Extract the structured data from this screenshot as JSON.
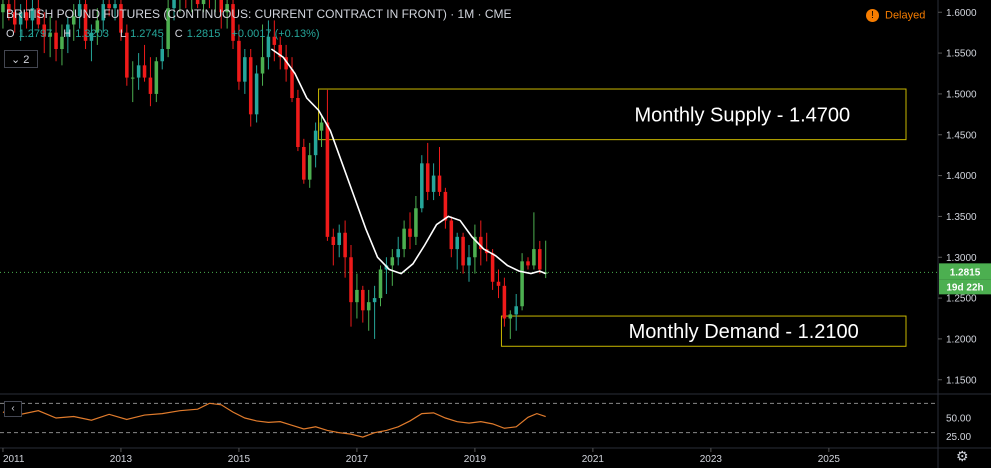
{
  "header": {
    "title": "BRITISH POUND FUTURES (CONTINUOUS: CURRENT CONTRACT IN FRONT) · 1M · CME",
    "ohlc": {
      "o_label": "O",
      "o_value": "1.2797",
      "h_label": "H",
      "h_value": "1.3203",
      "l_label": "L",
      "l_value": "1.2745",
      "c_label": "C",
      "c_value": "1.2815",
      "change": "+0.0017 (+0.13%)"
    },
    "delayed_label": "Delayed",
    "delayed_icon": "clock-icon",
    "collapse_count": "2"
  },
  "colors": {
    "background": "#000000",
    "up": "#26a69a",
    "up_alt": "#4caf50",
    "down": "#ef1a1a",
    "ma": "#ffffff",
    "zone": "#c9b800",
    "price_label": "#4caf50",
    "rsi": "#e07b2c"
  },
  "chart_data": {
    "type": "candlestick",
    "title": "BRITISH POUND FUTURES (CONTINUOUS: CURRENT CONTRACT IN FRONT) · 1M · CME",
    "timeframe": "1M",
    "y_ticks": [
      "1.6000",
      "1.5500",
      "1.5000",
      "1.4500",
      "1.4000",
      "1.3500",
      "1.3000",
      "1.2500",
      "1.2000",
      "1.1500"
    ],
    "ylim": [
      1.135,
      1.615
    ],
    "x_ticks": [
      "2011",
      "2013",
      "2015",
      "2017",
      "2019",
      "2021",
      "2023",
      "2025"
    ],
    "xlim": [
      2010.95,
      2026.85
    ],
    "last_price_label": "1.2815",
    "countdown_label": "19d 22h",
    "zones": [
      {
        "label": "Monthly Supply - 1.4700",
        "top": 1.506,
        "bottom": 1.444,
        "start": 2016.35,
        "end": 2026.85
      },
      {
        "label": "Monthly Demand - 1.2100",
        "top": 1.228,
        "bottom": 1.191,
        "start": 2019.45,
        "end": 2026.85
      }
    ],
    "candles": [
      {
        "t": 2011.0,
        "o": 1.6,
        "h": 1.625,
        "l": 1.58,
        "c": 1.61
      },
      {
        "t": 2011.1,
        "o": 1.61,
        "h": 1.63,
        "l": 1.59,
        "c": 1.6
      },
      {
        "t": 2011.2,
        "o": 1.6,
        "h": 1.625,
        "l": 1.575,
        "c": 1.585
      },
      {
        "t": 2011.3,
        "o": 1.585,
        "h": 1.61,
        "l": 1.565,
        "c": 1.6
      },
      {
        "t": 2011.4,
        "o": 1.6,
        "h": 1.62,
        "l": 1.58,
        "c": 1.59
      },
      {
        "t": 2011.5,
        "o": 1.59,
        "h": 1.615,
        "l": 1.57,
        "c": 1.605
      },
      {
        "t": 2011.6,
        "o": 1.605,
        "h": 1.62,
        "l": 1.58,
        "c": 1.585
      },
      {
        "t": 2011.7,
        "o": 1.585,
        "h": 1.6,
        "l": 1.55,
        "c": 1.57
      },
      {
        "t": 2011.8,
        "o": 1.57,
        "h": 1.595,
        "l": 1.545,
        "c": 1.575
      },
      {
        "t": 2011.9,
        "o": 1.575,
        "h": 1.59,
        "l": 1.54,
        "c": 1.555
      },
      {
        "t": 2012.0,
        "o": 1.555,
        "h": 1.585,
        "l": 1.535,
        "c": 1.57
      },
      {
        "t": 2012.1,
        "o": 1.57,
        "h": 1.595,
        "l": 1.55,
        "c": 1.585
      },
      {
        "t": 2012.2,
        "o": 1.585,
        "h": 1.61,
        "l": 1.565,
        "c": 1.595
      },
      {
        "t": 2012.3,
        "o": 1.595,
        "h": 1.62,
        "l": 1.58,
        "c": 1.61
      },
      {
        "t": 2012.4,
        "o": 1.61,
        "h": 1.62,
        "l": 1.555,
        "c": 1.565
      },
      {
        "t": 2012.5,
        "o": 1.565,
        "h": 1.585,
        "l": 1.54,
        "c": 1.575
      },
      {
        "t": 2012.6,
        "o": 1.575,
        "h": 1.605,
        "l": 1.56,
        "c": 1.59
      },
      {
        "t": 2012.7,
        "o": 1.59,
        "h": 1.62,
        "l": 1.575,
        "c": 1.61
      },
      {
        "t": 2012.8,
        "o": 1.61,
        "h": 1.625,
        "l": 1.595,
        "c": 1.605
      },
      {
        "t": 2012.9,
        "o": 1.605,
        "h": 1.625,
        "l": 1.59,
        "c": 1.61
      },
      {
        "t": 2013.0,
        "o": 1.61,
        "h": 1.625,
        "l": 1.565,
        "c": 1.575
      },
      {
        "t": 2013.1,
        "o": 1.575,
        "h": 1.585,
        "l": 1.51,
        "c": 1.52
      },
      {
        "t": 2013.2,
        "o": 1.52,
        "h": 1.54,
        "l": 1.49,
        "c": 1.52
      },
      {
        "t": 2013.3,
        "o": 1.52,
        "h": 1.55,
        "l": 1.505,
        "c": 1.535
      },
      {
        "t": 2013.4,
        "o": 1.535,
        "h": 1.56,
        "l": 1.515,
        "c": 1.52
      },
      {
        "t": 2013.5,
        "o": 1.52,
        "h": 1.545,
        "l": 1.485,
        "c": 1.5
      },
      {
        "t": 2013.6,
        "o": 1.5,
        "h": 1.545,
        "l": 1.49,
        "c": 1.54
      },
      {
        "t": 2013.7,
        "o": 1.54,
        "h": 1.57,
        "l": 1.53,
        "c": 1.555
      },
      {
        "t": 2013.8,
        "o": 1.555,
        "h": 1.625,
        "l": 1.545,
        "c": 1.605
      },
      {
        "t": 2013.9,
        "o": 1.605,
        "h": 1.625,
        "l": 1.59,
        "c": 1.615
      },
      {
        "t": 2014.0,
        "o": 1.615,
        "h": 1.625,
        "l": 1.6,
        "c": 1.62
      },
      {
        "t": 2014.1,
        "o": 1.62,
        "h": 1.625,
        "l": 1.605,
        "c": 1.615
      },
      {
        "t": 2014.2,
        "o": 1.615,
        "h": 1.625,
        "l": 1.6,
        "c": 1.62
      },
      {
        "t": 2014.3,
        "o": 1.62,
        "h": 1.625,
        "l": 1.605,
        "c": 1.61
      },
      {
        "t": 2014.4,
        "o": 1.61,
        "h": 1.625,
        "l": 1.6,
        "c": 1.62
      },
      {
        "t": 2014.5,
        "o": 1.62,
        "h": 1.625,
        "l": 1.605,
        "c": 1.615
      },
      {
        "t": 2014.6,
        "o": 1.615,
        "h": 1.625,
        "l": 1.6,
        "c": 1.62
      },
      {
        "t": 2014.7,
        "o": 1.62,
        "h": 1.625,
        "l": 1.58,
        "c": 1.6
      },
      {
        "t": 2014.8,
        "o": 1.6,
        "h": 1.625,
        "l": 1.58,
        "c": 1.61
      },
      {
        "t": 2014.9,
        "o": 1.61,
        "h": 1.62,
        "l": 1.555,
        "c": 1.565
      },
      {
        "t": 2015.0,
        "o": 1.565,
        "h": 1.585,
        "l": 1.505,
        "c": 1.515
      },
      {
        "t": 2015.1,
        "o": 1.515,
        "h": 1.555,
        "l": 1.5,
        "c": 1.545
      },
      {
        "t": 2015.2,
        "o": 1.545,
        "h": 1.555,
        "l": 1.46,
        "c": 1.475
      },
      {
        "t": 2015.3,
        "o": 1.475,
        "h": 1.535,
        "l": 1.465,
        "c": 1.525
      },
      {
        "t": 2015.4,
        "o": 1.525,
        "h": 1.585,
        "l": 1.51,
        "c": 1.545
      },
      {
        "t": 2015.5,
        "o": 1.545,
        "h": 1.59,
        "l": 1.53,
        "c": 1.57
      },
      {
        "t": 2015.6,
        "o": 1.57,
        "h": 1.59,
        "l": 1.54,
        "c": 1.56
      },
      {
        "t": 2015.7,
        "o": 1.56,
        "h": 1.57,
        "l": 1.53,
        "c": 1.545
      },
      {
        "t": 2015.8,
        "o": 1.545,
        "h": 1.56,
        "l": 1.515,
        "c": 1.53
      },
      {
        "t": 2015.9,
        "o": 1.53,
        "h": 1.545,
        "l": 1.49,
        "c": 1.495
      },
      {
        "t": 2016.0,
        "o": 1.495,
        "h": 1.505,
        "l": 1.43,
        "c": 1.435
      },
      {
        "t": 2016.1,
        "o": 1.435,
        "h": 1.445,
        "l": 1.39,
        "c": 1.395
      },
      {
        "t": 2016.2,
        "o": 1.395,
        "h": 1.44,
        "l": 1.385,
        "c": 1.425
      },
      {
        "t": 2016.3,
        "o": 1.425,
        "h": 1.465,
        "l": 1.41,
        "c": 1.455
      },
      {
        "t": 2016.4,
        "o": 1.455,
        "h": 1.475,
        "l": 1.435,
        "c": 1.465
      },
      {
        "t": 2016.5,
        "o": 1.465,
        "h": 1.505,
        "l": 1.32,
        "c": 1.325
      },
      {
        "t": 2016.6,
        "o": 1.325,
        "h": 1.335,
        "l": 1.29,
        "c": 1.315
      },
      {
        "t": 2016.7,
        "o": 1.315,
        "h": 1.34,
        "l": 1.3,
        "c": 1.33
      },
      {
        "t": 2016.8,
        "o": 1.33,
        "h": 1.345,
        "l": 1.275,
        "c": 1.3
      },
      {
        "t": 2016.9,
        "o": 1.3,
        "h": 1.315,
        "l": 1.215,
        "c": 1.245
      },
      {
        "t": 2017.0,
        "o": 1.245,
        "h": 1.28,
        "l": 1.225,
        "c": 1.26
      },
      {
        "t": 2017.1,
        "o": 1.26,
        "h": 1.265,
        "l": 1.22,
        "c": 1.235
      },
      {
        "t": 2017.2,
        "o": 1.235,
        "h": 1.26,
        "l": 1.21,
        "c": 1.245
      },
      {
        "t": 2017.3,
        "o": 1.245,
        "h": 1.265,
        "l": 1.2,
        "c": 1.25
      },
      {
        "t": 2017.4,
        "o": 1.25,
        "h": 1.29,
        "l": 1.24,
        "c": 1.285
      },
      {
        "t": 2017.5,
        "o": 1.285,
        "h": 1.3,
        "l": 1.255,
        "c": 1.29
      },
      {
        "t": 2017.6,
        "o": 1.29,
        "h": 1.31,
        "l": 1.265,
        "c": 1.3
      },
      {
        "t": 2017.7,
        "o": 1.3,
        "h": 1.325,
        "l": 1.29,
        "c": 1.31
      },
      {
        "t": 2017.8,
        "o": 1.31,
        "h": 1.345,
        "l": 1.3,
        "c": 1.335
      },
      {
        "t": 2017.9,
        "o": 1.335,
        "h": 1.355,
        "l": 1.31,
        "c": 1.325
      },
      {
        "t": 2018.0,
        "o": 1.325,
        "h": 1.375,
        "l": 1.315,
        "c": 1.36
      },
      {
        "t": 2018.1,
        "o": 1.36,
        "h": 1.425,
        "l": 1.355,
        "c": 1.415
      },
      {
        "t": 2018.2,
        "o": 1.415,
        "h": 1.44,
        "l": 1.37,
        "c": 1.38
      },
      {
        "t": 2018.3,
        "o": 1.38,
        "h": 1.415,
        "l": 1.37,
        "c": 1.4
      },
      {
        "t": 2018.4,
        "o": 1.4,
        "h": 1.435,
        "l": 1.375,
        "c": 1.38
      },
      {
        "t": 2018.5,
        "o": 1.38,
        "h": 1.385,
        "l": 1.335,
        "c": 1.345
      },
      {
        "t": 2018.6,
        "o": 1.345,
        "h": 1.35,
        "l": 1.3,
        "c": 1.31
      },
      {
        "t": 2018.7,
        "o": 1.31,
        "h": 1.33,
        "l": 1.285,
        "c": 1.325
      },
      {
        "t": 2018.8,
        "o": 1.325,
        "h": 1.33,
        "l": 1.28,
        "c": 1.29
      },
      {
        "t": 2018.9,
        "o": 1.29,
        "h": 1.315,
        "l": 1.27,
        "c": 1.3
      },
      {
        "t": 2019.0,
        "o": 1.3,
        "h": 1.34,
        "l": 1.28,
        "c": 1.325
      },
      {
        "t": 2019.1,
        "o": 1.325,
        "h": 1.345,
        "l": 1.29,
        "c": 1.31
      },
      {
        "t": 2019.2,
        "o": 1.31,
        "h": 1.33,
        "l": 1.295,
        "c": 1.305
      },
      {
        "t": 2019.3,
        "o": 1.305,
        "h": 1.31,
        "l": 1.26,
        "c": 1.27
      },
      {
        "t": 2019.4,
        "o": 1.27,
        "h": 1.285,
        "l": 1.25,
        "c": 1.265
      },
      {
        "t": 2019.5,
        "o": 1.265,
        "h": 1.275,
        "l": 1.215,
        "c": 1.225
      },
      {
        "t": 2019.6,
        "o": 1.225,
        "h": 1.235,
        "l": 1.2,
        "c": 1.23
      },
      {
        "t": 2019.7,
        "o": 1.23,
        "h": 1.255,
        "l": 1.21,
        "c": 1.24
      },
      {
        "t": 2019.8,
        "o": 1.24,
        "h": 1.305,
        "l": 1.235,
        "c": 1.295
      },
      {
        "t": 2019.9,
        "o": 1.295,
        "h": 1.3,
        "l": 1.285,
        "c": 1.29
      },
      {
        "t": 2020.0,
        "o": 1.29,
        "h": 1.355,
        "l": 1.285,
        "c": 1.31
      },
      {
        "t": 2020.1,
        "o": 1.31,
        "h": 1.32,
        "l": 1.28,
        "c": 1.285
      },
      {
        "t": 2020.2,
        "o": 1.2797,
        "h": 1.3203,
        "l": 1.2745,
        "c": 1.2815
      }
    ],
    "moving_average": [
      [
        2015.55,
        1.555
      ],
      [
        2015.75,
        1.545
      ],
      [
        2015.95,
        1.525
      ],
      [
        2016.15,
        1.495
      ],
      [
        2016.35,
        1.48
      ],
      [
        2016.55,
        1.455
      ],
      [
        2016.75,
        1.415
      ],
      [
        2016.95,
        1.375
      ],
      [
        2017.15,
        1.335
      ],
      [
        2017.35,
        1.3
      ],
      [
        2017.55,
        1.285
      ],
      [
        2017.75,
        1.28
      ],
      [
        2017.95,
        1.292
      ],
      [
        2018.15,
        1.315
      ],
      [
        2018.35,
        1.34
      ],
      [
        2018.55,
        1.35
      ],
      [
        2018.75,
        1.345
      ],
      [
        2018.95,
        1.325
      ],
      [
        2019.15,
        1.31
      ],
      [
        2019.35,
        1.302
      ],
      [
        2019.55,
        1.29
      ],
      [
        2019.75,
        1.283
      ],
      [
        2019.95,
        1.28
      ],
      [
        2020.1,
        1.283
      ],
      [
        2020.2,
        1.28
      ]
    ],
    "rsi": {
      "ticks": [
        "50.00",
        "25.00"
      ],
      "ylim": [
        20,
        80
      ],
      "bands": [
        70,
        30
      ],
      "points": [
        [
          2011.0,
          58
        ],
        [
          2011.3,
          55
        ],
        [
          2011.6,
          60
        ],
        [
          2011.9,
          50
        ],
        [
          2012.2,
          52
        ],
        [
          2012.5,
          47
        ],
        [
          2012.8,
          55
        ],
        [
          2013.1,
          48
        ],
        [
          2013.4,
          54
        ],
        [
          2013.7,
          56
        ],
        [
          2014.0,
          60
        ],
        [
          2014.3,
          62
        ],
        [
          2014.5,
          70
        ],
        [
          2014.7,
          68
        ],
        [
          2014.9,
          58
        ],
        [
          2015.1,
          50
        ],
        [
          2015.3,
          46
        ],
        [
          2015.5,
          44
        ],
        [
          2015.7,
          45
        ],
        [
          2015.9,
          40
        ],
        [
          2016.1,
          35
        ],
        [
          2016.3,
          38
        ],
        [
          2016.5,
          33
        ],
        [
          2016.7,
          30
        ],
        [
          2016.9,
          28
        ],
        [
          2017.1,
          24
        ],
        [
          2017.3,
          30
        ],
        [
          2017.5,
          33
        ],
        [
          2017.7,
          38
        ],
        [
          2017.9,
          46
        ],
        [
          2018.1,
          56
        ],
        [
          2018.3,
          57
        ],
        [
          2018.5,
          50
        ],
        [
          2018.7,
          45
        ],
        [
          2018.9,
          43
        ],
        [
          2019.1,
          45
        ],
        [
          2019.3,
          42
        ],
        [
          2019.5,
          36
        ],
        [
          2019.7,
          38
        ],
        [
          2019.9,
          51
        ],
        [
          2020.05,
          56
        ],
        [
          2020.2,
          52
        ]
      ]
    }
  }
}
